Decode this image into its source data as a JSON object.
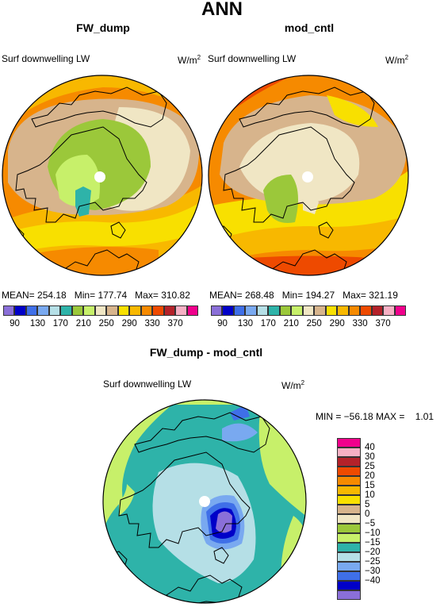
{
  "title": "ANN",
  "panels": [
    {
      "title": "FW_dump",
      "variable": "Surf downwelling LW",
      "unit_base": "W/m",
      "unit_exp": "2",
      "stats": {
        "mean_label": "MEAN=",
        "mean": "254.18",
        "min_label": "Min=",
        "min": "177.74",
        "max_label": "Max=",
        "max": "310.82"
      }
    },
    {
      "title": "mod_cntl",
      "variable": "Surf downwelling LW",
      "unit_base": "W/m",
      "unit_exp": "2",
      "stats": {
        "mean_label": "MEAN=",
        "mean": "268.48",
        "min_label": "Min=",
        "min": "194.27",
        "max_label": "Max=",
        "max": "321.19"
      }
    }
  ],
  "colorbar_abs": {
    "colors": [
      "#8a6fd8",
      "#0000c8",
      "#3f6fe8",
      "#79a9f0",
      "#b5dfe6",
      "#2eb3a9",
      "#9bc83a",
      "#c7f06a",
      "#f0e6c4",
      "#d7b48c",
      "#f8e000",
      "#f8b800",
      "#f68a00",
      "#ee4a00",
      "#b4222a",
      "#f6b0c4",
      "#f0008c"
    ],
    "labels": [
      "90",
      "130",
      "170",
      "210",
      "250",
      "290",
      "330",
      "370"
    ]
  },
  "diff_panel": {
    "title": "FW_dump - mod_cntl",
    "variable": "Surf downwelling LW",
    "unit_base": "W/m",
    "unit_exp": "2",
    "stats_text": "MIN = −56.18 MAX =    1.01",
    "colorbar": {
      "colors": [
        "#f0008c",
        "#f6b0c4",
        "#b4222a",
        "#ee4a00",
        "#f68a00",
        "#f8b800",
        "#f8e000",
        "#d7b48c",
        "#f0e6c4",
        "#9bc83a",
        "#c7f06a",
        "#2eb3a9",
        "#b5dfe6",
        "#79a9f0",
        "#3f6fe8",
        "#0000c8",
        "#8a6fd8"
      ],
      "labels": [
        "40",
        "30",
        "25",
        "20",
        "15",
        "10",
        "5",
        "0",
        "−5",
        "−10",
        "−15",
        "−20",
        "−25",
        "−30",
        "−40"
      ]
    }
  },
  "chart_data": [
    {
      "type": "heatmap",
      "title": "FW_dump",
      "subtitle": "Surf downwelling LW",
      "unit": "W/m2",
      "projection": "polar stereographic (north pole)",
      "levels": [
        90,
        110,
        130,
        150,
        170,
        190,
        210,
        230,
        250,
        270,
        290,
        310,
        330,
        350,
        370
      ],
      "mean": 254.18,
      "min": 177.74,
      "max": 310.82
    },
    {
      "type": "heatmap",
      "title": "mod_cntl",
      "subtitle": "Surf downwelling LW",
      "unit": "W/m2",
      "projection": "polar stereographic (north pole)",
      "levels": [
        90,
        110,
        130,
        150,
        170,
        190,
        210,
        230,
        250,
        270,
        290,
        310,
        330,
        350,
        370
      ],
      "mean": 268.48,
      "min": 194.27,
      "max": 321.19
    },
    {
      "type": "heatmap",
      "title": "FW_dump - mod_cntl",
      "subtitle": "Surf downwelling LW",
      "unit": "W/m2",
      "projection": "polar stereographic (north pole)",
      "levels": [
        -40,
        -30,
        -25,
        -20,
        -15,
        -10,
        -5,
        0,
        5,
        10,
        15,
        20,
        25,
        30,
        40
      ],
      "min": -56.18,
      "max": 1.01
    }
  ]
}
